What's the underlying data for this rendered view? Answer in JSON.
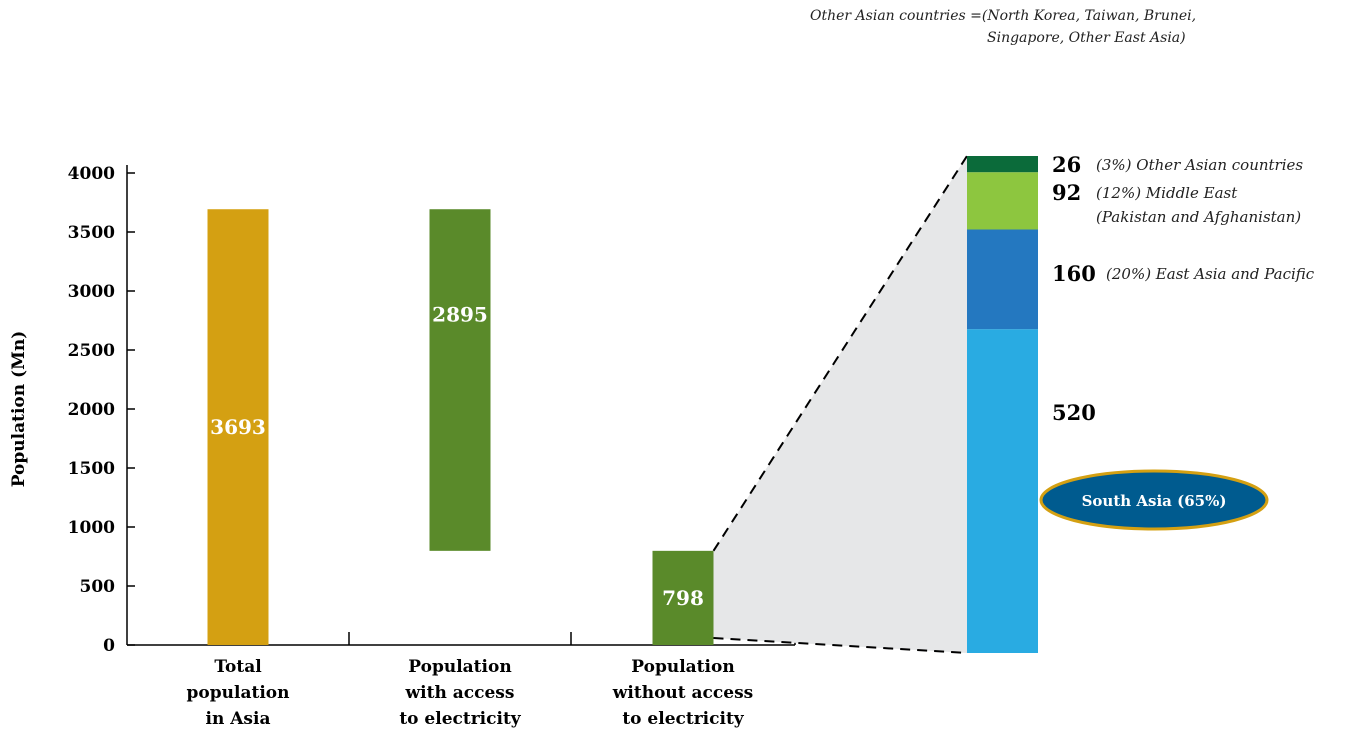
{
  "note": {
    "line1": "Other Asian countries =(North Korea, Taiwan, Brunei,",
    "line2": "Singapore, Other East Asia)"
  },
  "chart_data": {
    "type": "bar",
    "ylabel": "Population (Mn)",
    "ylim": [
      0,
      4000
    ],
    "yticks": [
      0,
      500,
      1000,
      1500,
      2000,
      2500,
      3000,
      3500,
      4000
    ],
    "categories": [
      [
        "Total",
        "population",
        "in Asia"
      ],
      [
        "Population",
        "with access",
        "to electricity"
      ],
      [
        "Population",
        "without access",
        "to electricity"
      ]
    ],
    "bars": [
      {
        "value": 3693,
        "base": 0,
        "top": 3693,
        "label": "3693",
        "color": "#d4a012"
      },
      {
        "value": 2895,
        "base": 798,
        "top": 3693,
        "label": "2895",
        "color": "#5a8a2a"
      },
      {
        "value": 798,
        "base": 0,
        "top": 798,
        "label": "798",
        "color": "#5a8a2a"
      }
    ],
    "breakdown": [
      {
        "value": 520,
        "label": "520",
        "percent": "(65%)",
        "name": "South Asia (65%)",
        "color": "#29abe2"
      },
      {
        "value": 160,
        "label": "160",
        "percent": "(20%)",
        "name": "East Asia and Pacific",
        "color": "#2478c0"
      },
      {
        "value": 92,
        "label": "92",
        "percent": "(12%)",
        "name": "Middle East",
        "name2": "(Pakistan and Afghanistan)",
        "color": "#8dc63f"
      },
      {
        "value": 26,
        "label": "26",
        "percent": "(3%)",
        "name": "Other Asian countries",
        "color": "#0b6b3a"
      }
    ],
    "grid": false,
    "legend": "none"
  }
}
